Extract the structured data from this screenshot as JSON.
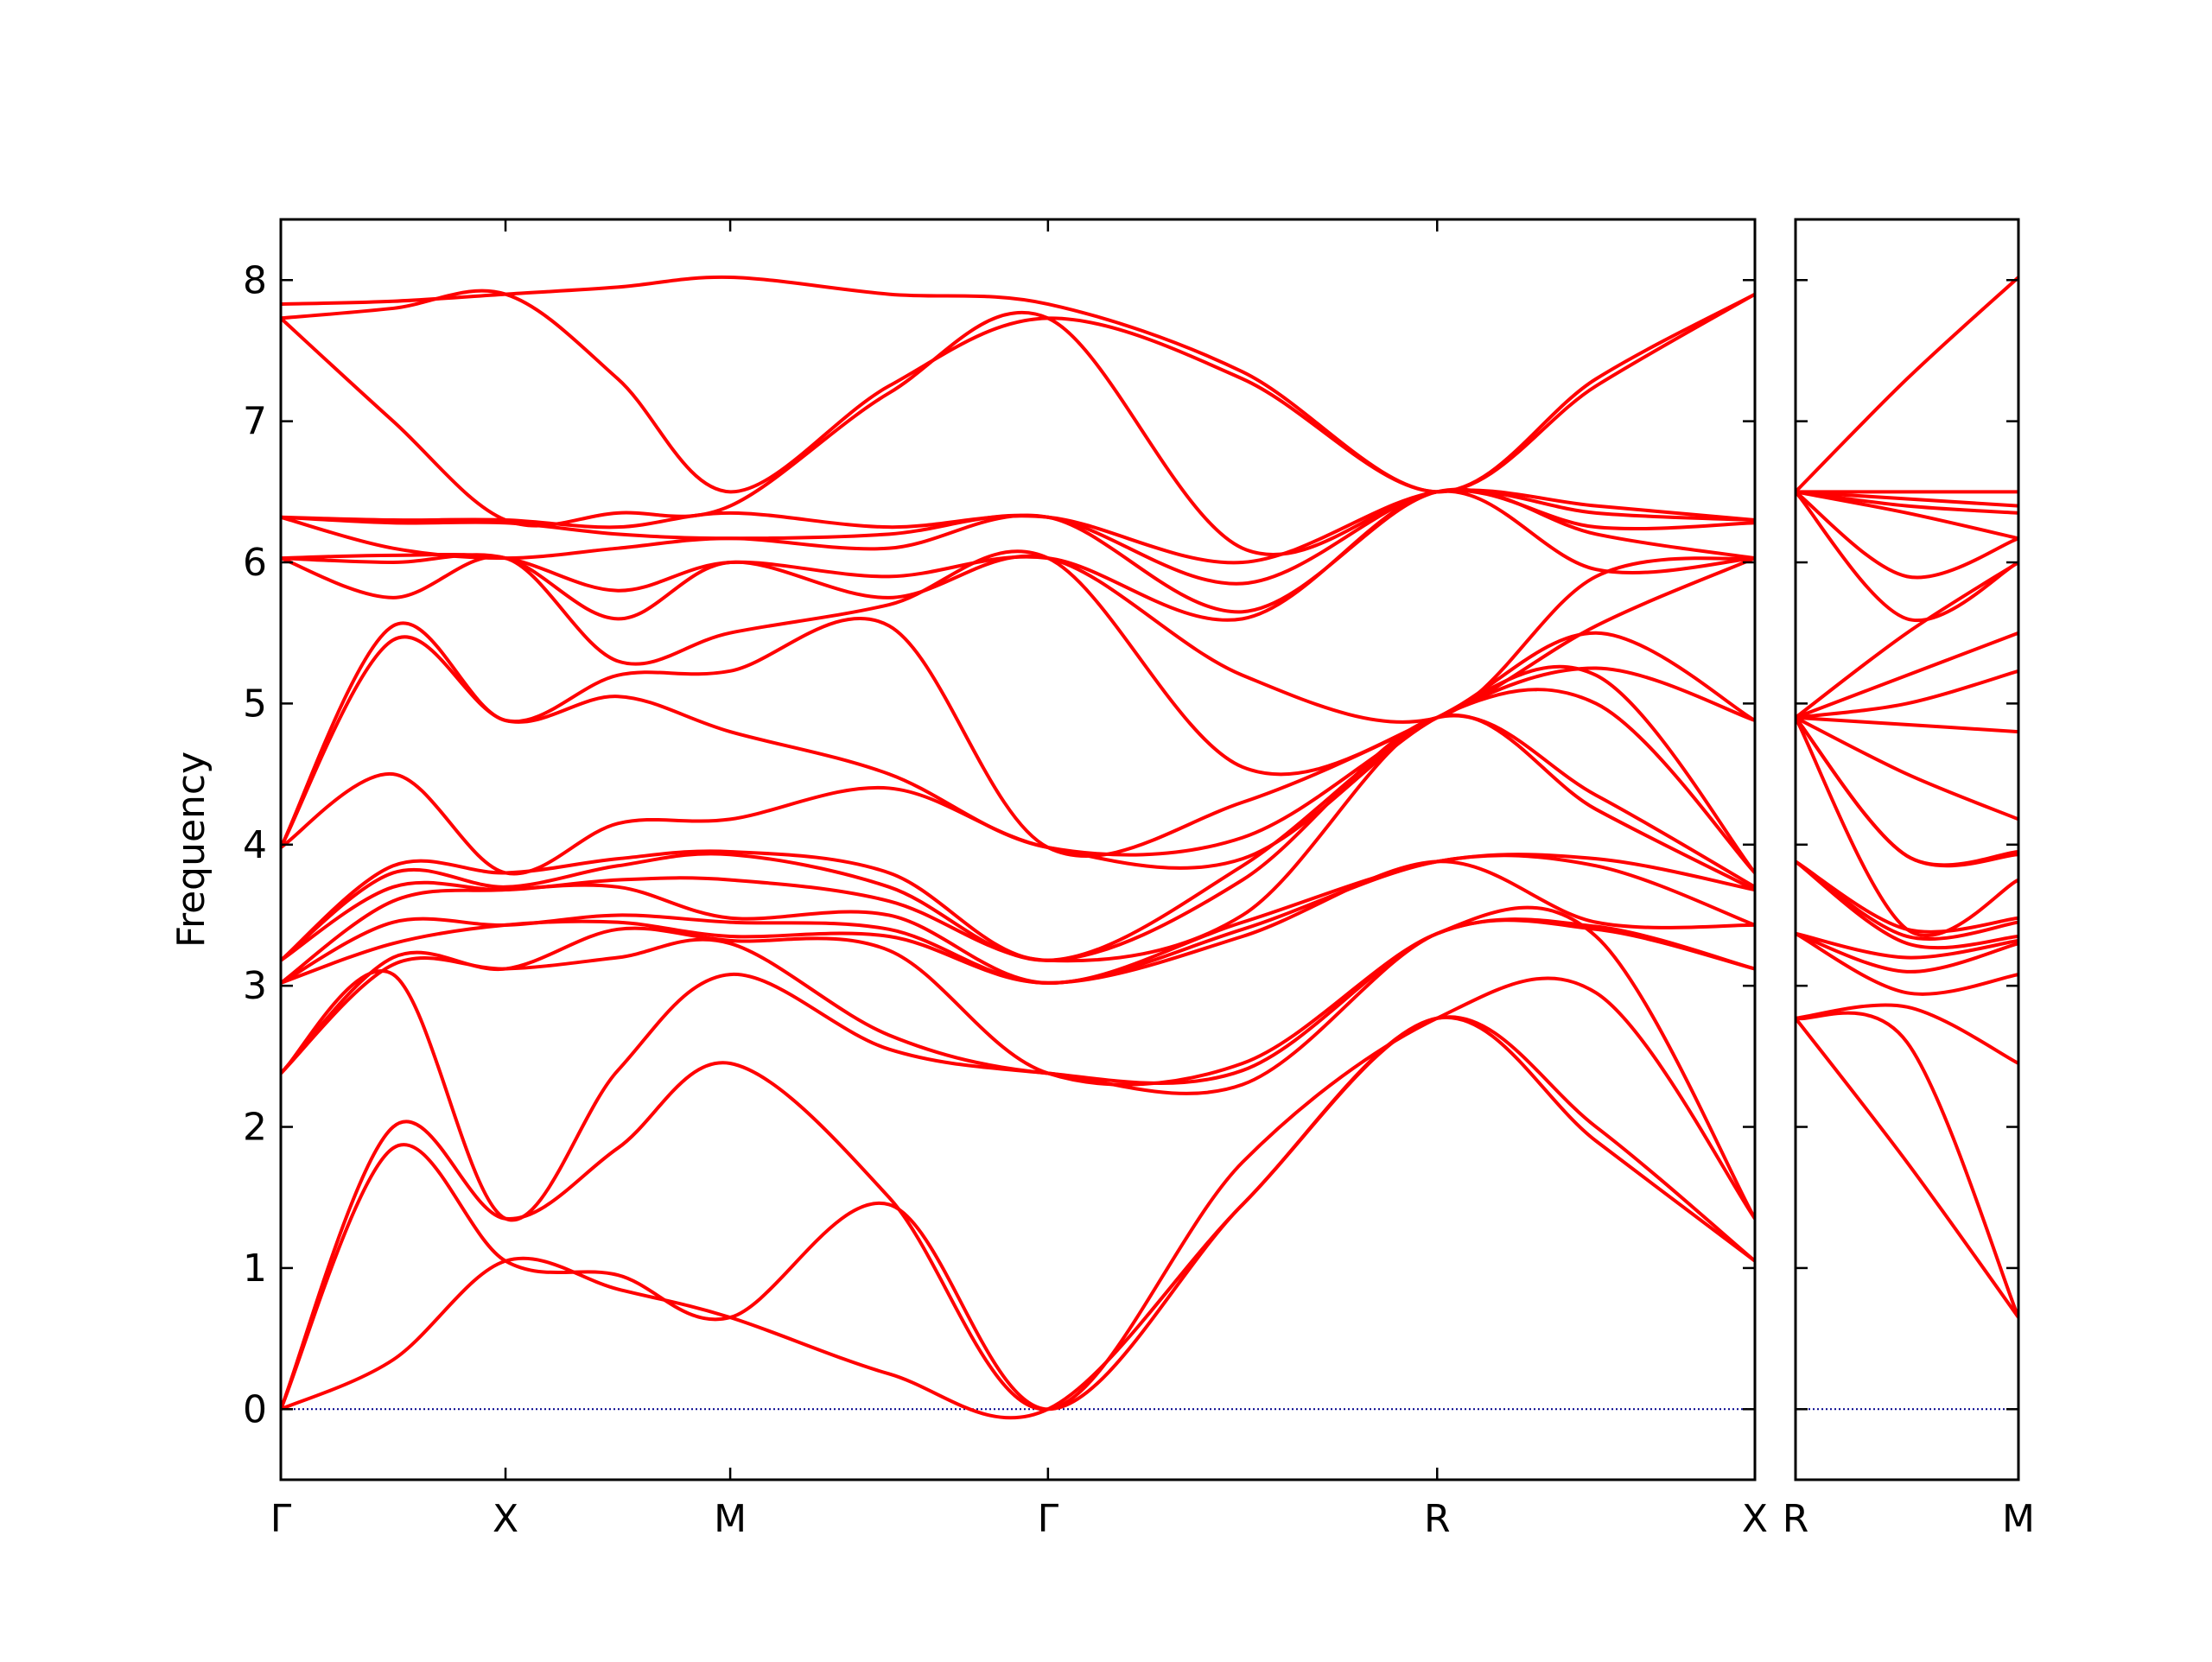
{
  "chart_data": [
    {
      "type": "line",
      "ylabel": "Frequency",
      "color": "#ff0000",
      "hlines": [
        0
      ],
      "hline_color": "#00008b",
      "ytick_labels": true,
      "x": [
        0,
        0.25,
        0.5,
        0.75,
        1,
        1.3536,
        1.7071,
        2.1401,
        2.5731,
        2.9267,
        3.2802
      ],
      "xlim": [
        0,
        3.2802
      ],
      "xticks": [
        {
          "value": 0,
          "label": "Γ"
        },
        {
          "value": 0.5,
          "label": "X"
        },
        {
          "value": 1,
          "label": "M"
        },
        {
          "value": 1.7071,
          "label": "Γ"
        },
        {
          "value": 2.5731,
          "label": "R"
        },
        {
          "value": 3.2802,
          "label": "X"
        }
      ],
      "ylim": [
        -0.5,
        8.43
      ],
      "yticks": [
        0,
        1,
        2,
        3,
        4,
        5,
        6,
        7,
        8
      ],
      "series": [
        {
          "values": [
            0,
            0.35,
            1.05,
            0.85,
            0.65,
            0.25,
            0,
            1.45,
            2.77,
            1.9,
            1.05
          ]
        },
        {
          "values": [
            0,
            1.85,
            1.05,
            0.95,
            0.65,
            1.45,
            0,
            1.45,
            2.77,
            2.0,
            1.05
          ]
        },
        {
          "values": [
            0,
            2.0,
            1.35,
            1.85,
            2.45,
            1.5,
            0,
            1.75,
            2.77,
            2.95,
            1.35
          ]
        },
        {
          "values": [
            2.38,
            3.08,
            1.35,
            2.4,
            3.08,
            2.55,
            2.38,
            2.3,
            3.37,
            3.35,
            1.35
          ]
        },
        {
          "values": [
            2.38,
            3.15,
            3.12,
            3.2,
            3.3,
            2.65,
            2.38,
            2.4,
            3.37,
            3.4,
            3.12
          ]
        },
        {
          "values": [
            2.38,
            3.2,
            3.12,
            3.4,
            3.32,
            3.25,
            2.38,
            2.45,
            3.37,
            3.42,
            3.12
          ]
        },
        {
          "values": [
            3.02,
            3.3,
            3.43,
            3.45,
            3.35,
            3.35,
            3.02,
            3.35,
            3.88,
            3.45,
            3.43
          ]
        },
        {
          "values": [
            3.02,
            3.45,
            3.43,
            3.5,
            3.45,
            3.4,
            3.02,
            3.4,
            3.88,
            3.85,
            3.43
          ]
        },
        {
          "values": [
            3.02,
            3.6,
            3.68,
            3.7,
            3.48,
            3.5,
            3.02,
            3.45,
            3.88,
            3.9,
            3.68
          ]
        },
        {
          "values": [
            3.18,
            3.7,
            3.68,
            3.75,
            3.75,
            3.6,
            3.18,
            3.5,
            4.9,
            4.25,
            3.68
          ]
        },
        {
          "values": [
            3.18,
            3.8,
            3.7,
            3.85,
            3.93,
            3.7,
            3.18,
            3.75,
            4.9,
            4.35,
            3.7
          ]
        },
        {
          "values": [
            3.18,
            3.85,
            3.8,
            3.9,
            3.95,
            3.8,
            3.18,
            3.85,
            4.9,
            5.0,
            3.8
          ]
        },
        {
          "values": [
            3.98,
            4.5,
            3.8,
            4.15,
            4.18,
            4.4,
            3.98,
            3.9,
            4.9,
            5.2,
            3.8
          ]
        },
        {
          "values": [
            3.98,
            5.45,
            4.88,
            5.05,
            4.8,
            4.5,
            3.98,
            4.05,
            4.9,
            5.25,
            4.88
          ]
        },
        {
          "values": [
            3.98,
            5.55,
            4.88,
            5.2,
            5.23,
            5.55,
            3.98,
            4.3,
            4.9,
            5.5,
            4.88
          ]
        },
        {
          "values": [
            6.03,
            5.75,
            6.03,
            5.3,
            5.5,
            5.7,
            6.03,
            4.55,
            4.9,
            5.55,
            6.03
          ]
        },
        {
          "values": [
            6.03,
            6.0,
            6.03,
            5.6,
            6.0,
            5.75,
            6.03,
            5.2,
            4.9,
            5.9,
            6.03
          ]
        },
        {
          "values": [
            6.03,
            6.05,
            6.03,
            5.8,
            6.0,
            5.9,
            6.03,
            5.6,
            6.5,
            5.95,
            6.03
          ]
        },
        {
          "values": [
            6.32,
            6.1,
            6.03,
            6.1,
            6.17,
            6.1,
            6.32,
            5.65,
            6.5,
            6.2,
            6.03
          ]
        },
        {
          "values": [
            6.32,
            6.28,
            6.28,
            6.2,
            6.17,
            6.2,
            6.32,
            5.85,
            6.5,
            6.25,
            6.28
          ]
        },
        {
          "values": [
            6.32,
            6.3,
            6.3,
            6.25,
            6.35,
            6.25,
            6.32,
            6.0,
            6.5,
            6.35,
            6.3
          ]
        },
        {
          "values": [
            7.73,
            7.0,
            6.3,
            6.35,
            6.4,
            7.2,
            7.73,
            6.1,
            6.5,
            6.4,
            6.3
          ]
        },
        {
          "values": [
            7.73,
            7.8,
            7.9,
            7.3,
            6.5,
            7.25,
            7.73,
            7.3,
            6.5,
            7.25,
            7.9
          ]
        },
        {
          "values": [
            7.83,
            7.85,
            7.9,
            7.95,
            8.02,
            7.9,
            7.83,
            7.35,
            6.5,
            7.3,
            7.9
          ]
        }
      ]
    },
    {
      "type": "line",
      "color": "#ff0000",
      "hlines": [
        0
      ],
      "hline_color": "#00008b",
      "ytick_labels": false,
      "x": [
        0,
        0.25,
        0.5
      ],
      "xlim": [
        0,
        0.5
      ],
      "xticks": [
        {
          "value": 0,
          "label": "R"
        },
        {
          "value": 0.5,
          "label": "M"
        }
      ],
      "ylim": [
        -0.5,
        8.43
      ],
      "yticks": [
        0,
        1,
        2,
        3,
        4,
        5,
        6,
        7,
        8
      ],
      "series": [
        {
          "values": [
            2.77,
            1.75,
            0.65
          ]
        },
        {
          "values": [
            2.77,
            2.6,
            0.65
          ]
        },
        {
          "values": [
            2.77,
            2.85,
            2.45
          ]
        },
        {
          "values": [
            3.37,
            2.95,
            3.08
          ]
        },
        {
          "values": [
            3.37,
            3.1,
            3.3
          ]
        },
        {
          "values": [
            3.37,
            3.2,
            3.32
          ]
        },
        {
          "values": [
            3.88,
            3.3,
            3.35
          ]
        },
        {
          "values": [
            3.88,
            3.35,
            3.45
          ]
        },
        {
          "values": [
            3.88,
            3.4,
            3.48
          ]
        },
        {
          "values": [
            4.9,
            3.4,
            3.75
          ]
        },
        {
          "values": [
            4.9,
            3.92,
            3.93
          ]
        },
        {
          "values": [
            4.9,
            3.92,
            3.95
          ]
        },
        {
          "values": [
            4.9,
            4.5,
            4.18
          ]
        },
        {
          "values": [
            4.9,
            4.85,
            4.8
          ]
        },
        {
          "values": [
            4.9,
            5.0,
            5.23
          ]
        },
        {
          "values": [
            4.9,
            5.2,
            5.5
          ]
        },
        {
          "values": [
            4.9,
            5.5,
            6.0
          ]
        },
        {
          "values": [
            6.5,
            5.6,
            6.0
          ]
        },
        {
          "values": [
            6.5,
            5.9,
            6.17
          ]
        },
        {
          "values": [
            6.5,
            6.35,
            6.17
          ]
        },
        {
          "values": [
            6.5,
            6.4,
            6.35
          ]
        },
        {
          "values": [
            6.5,
            6.45,
            6.4
          ]
        },
        {
          "values": [
            6.5,
            6.5,
            6.5
          ]
        },
        {
          "values": [
            6.5,
            7.3,
            8.02
          ]
        }
      ]
    }
  ]
}
